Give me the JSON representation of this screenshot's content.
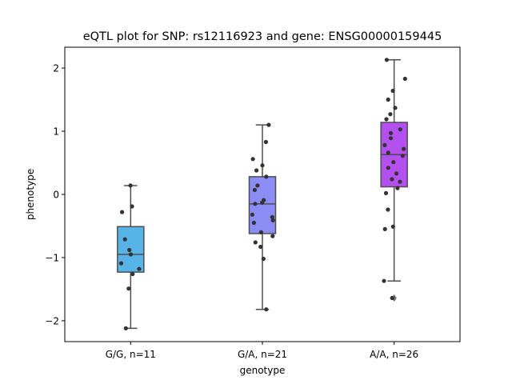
{
  "chart_data": {
    "type": "box",
    "title": "eQTL plot for SNP: rs12116923 and gene: ENSG00000159445",
    "xlabel": "genotype",
    "ylabel": "phenotype",
    "ylim": [
      -2.33,
      2.33
    ],
    "yticks": [
      -2,
      -1,
      0,
      1,
      2
    ],
    "ytick_labels": [
      "−2",
      "−1",
      "0",
      "1",
      "2"
    ],
    "grid": false,
    "categories": [
      "G/G, n=11",
      "G/A, n=21",
      "A/A, n=26"
    ],
    "boxes": [
      {
        "category": "G/G, n=11",
        "color": "#56b4e9",
        "whisker_low": -2.12,
        "q1": -1.23,
        "median": -0.95,
        "q3": -0.51,
        "whisker_high": 0.14,
        "outliers": [],
        "points": [
          0.14,
          -0.19,
          -0.28,
          -0.71,
          -0.88,
          -0.95,
          -1.09,
          -1.18,
          -1.26,
          -1.49,
          -2.12
        ]
      },
      {
        "category": "G/A, n=21",
        "color": "#8c8cf5",
        "whisker_low": -1.82,
        "q1": -0.62,
        "median": -0.15,
        "q3": 0.28,
        "whisker_high": 1.1,
        "outliers": [],
        "points": [
          1.1,
          0.83,
          0.56,
          0.46,
          0.38,
          0.28,
          0.07,
          -0.09,
          -0.13,
          -0.15,
          -0.32,
          -0.36,
          -0.41,
          -0.45,
          -0.6,
          -0.66,
          -0.76,
          -0.83,
          -1.02,
          -1.82,
          0.14
        ]
      },
      {
        "category": "A/A, n=26",
        "color": "#b44ff0",
        "whisker_low": -1.37,
        "q1": 0.12,
        "median": 0.63,
        "q3": 1.14,
        "whisker_high": 2.13,
        "outliers": [
          -1.64
        ],
        "points": [
          2.13,
          1.83,
          1.64,
          1.5,
          1.37,
          1.27,
          1.19,
          1.03,
          0.97,
          0.89,
          0.78,
          0.72,
          0.66,
          0.61,
          0.51,
          0.42,
          0.33,
          0.24,
          0.2,
          0.1,
          0.02,
          -0.24,
          -0.51,
          -0.55,
          -1.37,
          -1.64
        ]
      }
    ],
    "point_color": "#333333"
  }
}
